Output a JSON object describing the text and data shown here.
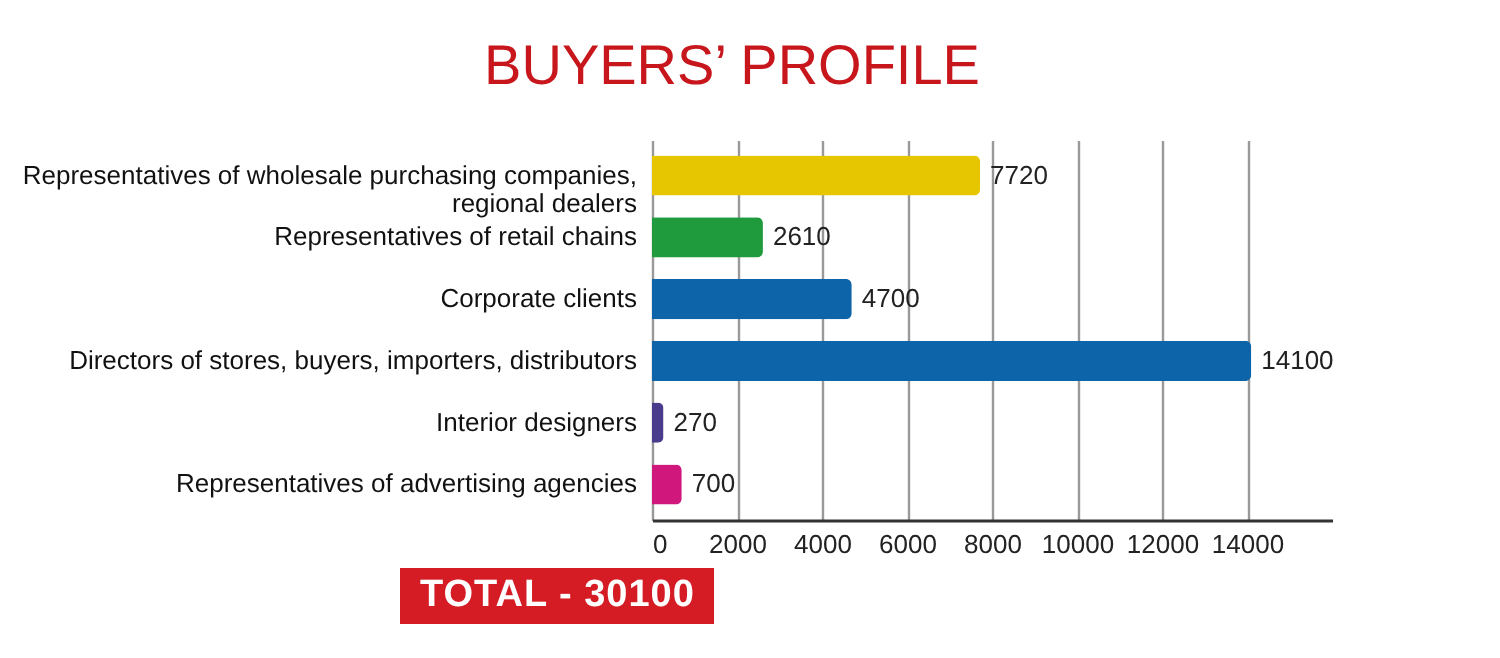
{
  "chart_data": {
    "type": "bar",
    "orientation": "horizontal",
    "title": "BUYERS’ PROFILE",
    "categories": [
      "Representatives of wholesale purchasing companies,\nregional dealers",
      "Representatives of retail chains",
      "Corporate clients",
      "Directors of stores, buyers, importers, distributors",
      "Interior designers",
      "Representatives of advertising agencies"
    ],
    "values": [
      7720,
      2610,
      4700,
      14100,
      270,
      700
    ],
    "colors": [
      "#e6c600",
      "#1f9a3c",
      "#0d64a8",
      "#0d64a8",
      "#4b3b8c",
      "#d0177c"
    ],
    "xlim": [
      0,
      16000
    ],
    "xticks": [
      0,
      2000,
      4000,
      6000,
      8000,
      10000,
      12000,
      14000
    ],
    "grid": "x",
    "data_labels": true,
    "annotations": [
      "TOTAL - 30100"
    ]
  }
}
